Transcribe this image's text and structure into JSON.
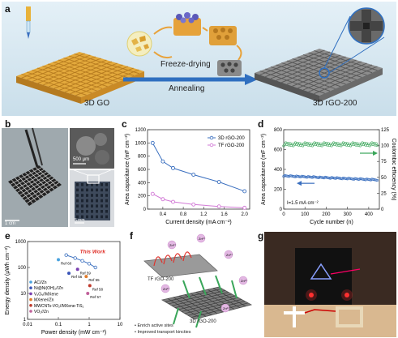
{
  "panel_labels": {
    "a": "a",
    "b": "b",
    "c": "c",
    "d": "d",
    "e": "e",
    "f": "f",
    "g": "g"
  },
  "panel_a": {
    "left_label": "3D GO",
    "right_label": "3D rGO-200",
    "arrow_top": "Freeze-drying",
    "arrow_bottom": "Annealing"
  },
  "panel_b": {
    "scale_main": "1 cm",
    "scale_top_inset": "500 μm",
    "scale_bottom_inset": "5 mm"
  },
  "colors": {
    "blue": "#3a6fbf",
    "pink": "#d27ad6",
    "green": "#3aa65a",
    "red": "#e0322b",
    "panel_a_bg": "#cfe3ef"
  },
  "chart_data": [
    {
      "id": "c",
      "type": "line",
      "xlabel": "Current density (mA cm⁻²)",
      "ylabel": "Area capacitance (mF cm⁻²)",
      "xlim": [
        0.1,
        2.1
      ],
      "ylim": [
        0,
        1200
      ],
      "xticks": [
        "0.2",
        "0.4",
        "0.6",
        "0.8",
        "1.0",
        "1.2",
        "1.4",
        "1.6",
        "1.8",
        "2.0"
      ],
      "yticks": [
        "0",
        "200",
        "400",
        "600",
        "800",
        "1000",
        "1200"
      ],
      "legend": [
        "3D rGO-200",
        "TF rGO-200"
      ],
      "series": [
        {
          "name": "3D rGO-200",
          "x": [
            0.2,
            0.4,
            0.6,
            1.0,
            1.5,
            2.0
          ],
          "values": [
            1000,
            720,
            620,
            520,
            410,
            270
          ]
        },
        {
          "name": "TF rGO-200",
          "x": [
            0.2,
            0.4,
            0.6,
            1.0,
            1.5,
            2.0
          ],
          "values": [
            230,
            150,
            110,
            70,
            40,
            20
          ]
        }
      ]
    },
    {
      "id": "d",
      "type": "scatter",
      "xlabel": "Cycle number (n)",
      "ylabel": "Area capacitance (mF cm⁻²)",
      "ylabel_right": "Coulombic efficiency (%)",
      "xlim": [
        0,
        450
      ],
      "ylim": [
        0,
        800
      ],
      "ylim_right": [
        0,
        125
      ],
      "xticks": [
        "0",
        "50",
        "100",
        "150",
        "200",
        "250",
        "300",
        "350",
        "400"
      ],
      "yticks": [
        "0",
        "200",
        "400",
        "600",
        "800"
      ],
      "yticks_right": [
        "0",
        "25",
        "50",
        "75",
        "100",
        "125"
      ],
      "annotation": "I=1.5 mA cm⁻²",
      "series": [
        {
          "name": "Area capacitance",
          "start": 335,
          "end": 295
        },
        {
          "name": "Coulombic efficiency",
          "level": 102
        }
      ]
    },
    {
      "id": "e",
      "type": "scatter",
      "xlabel": "Power density (mW cm⁻²)",
      "ylabel": "Energy density (μWh cm⁻²)",
      "xscale": "log",
      "yscale": "log",
      "xticks": [
        "0.01",
        "0.1",
        "1",
        "10"
      ],
      "yticks": [
        "1",
        "10",
        "100",
        "1000"
      ],
      "this_work_label": "This Work",
      "this_work": {
        "x": [
          0.18,
          0.35,
          0.6,
          1.0,
          1.6
        ],
        "y": [
          300,
          230,
          180,
          140,
          100
        ]
      },
      "refs": [
        {
          "label": "Ref 60",
          "x": 0.1,
          "y": 200
        },
        {
          "label": "Ref 56",
          "x": 0.22,
          "y": 60
        },
        {
          "label": "Ref 59",
          "x": 0.42,
          "y": 85
        },
        {
          "label": "Ref 55",
          "x": 0.8,
          "y": 45
        },
        {
          "label": "Ref 58",
          "x": 1.05,
          "y": 20
        },
        {
          "label": "Ref 57",
          "x": 0.9,
          "y": 10
        }
      ],
      "legend": [
        {
          "label": "AC//Zn",
          "color": "#4aa3df",
          "marker": "circle"
        },
        {
          "label": "Ni@Ni(OH)₂//Zn",
          "color": "#3a55b8",
          "marker": "triangle"
        },
        {
          "label": "V₂O₅//MXene",
          "color": "#7a3fb0",
          "marker": "triangle-down"
        },
        {
          "label": "MXene//Zn",
          "color": "#e07b2a",
          "marker": "diamond"
        },
        {
          "label": "MWCNTs-VO₂//MXene-TiS₂",
          "color": "#c0392b",
          "marker": "square"
        },
        {
          "label": "VO₂//Zn",
          "color": "#c0609a",
          "marker": "circle"
        }
      ]
    }
  ],
  "panel_f": {
    "top_label": "TF rGO-200",
    "bottom_label": "3D rGO-200",
    "ion": "Zn²⁺",
    "bullets": [
      "Enrich active sites",
      "Improved transport kincties"
    ]
  }
}
